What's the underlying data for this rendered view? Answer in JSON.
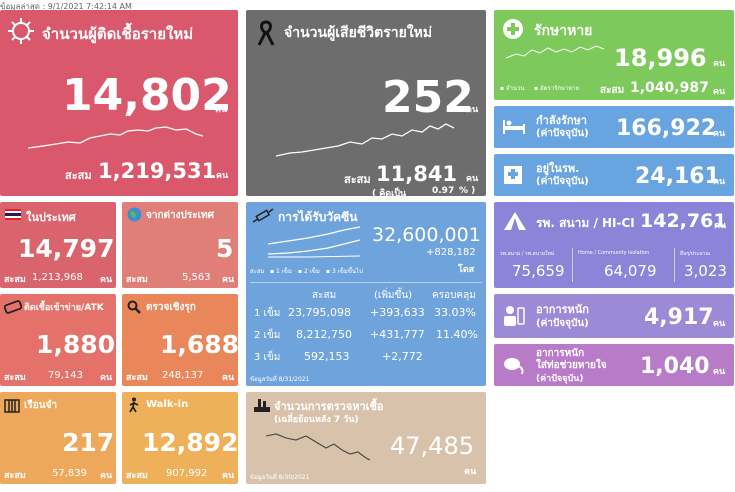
{
  "header": {
    "updated": "ข้อมูลล่าสุด : 9/1/2021 7:42:14 AM"
  },
  "new_cases": {
    "title": "จำนวนผู้ติดเชื้อรายใหม่",
    "value": "14,802",
    "unit": "คน",
    "cum_label": "สะสม",
    "cum_value": "1,219,531",
    "cum_unit": "คน",
    "icon": "virus-icon",
    "color": "#d9586c"
  },
  "deaths": {
    "title": "จำนวนผู้เสียชีวิตรายใหม่",
    "value": "252",
    "unit": "คน",
    "cum_label": "สะสม",
    "cum_value": "11,841",
    "cum_unit": "คน",
    "ratio_label": "( คิดเป็น",
    "ratio_value": "0.97",
    "ratio_suffix": "% )",
    "icon": "black-ribbon-icon",
    "color": "#6d6d6d"
  },
  "recovered": {
    "title": "รักษาหาย",
    "value": "18,996",
    "unit": "คน",
    "legend_count": "จำนวน",
    "legend_rate": "อัตรารักษาหาย",
    "cum_label": "สะสม",
    "cum_value": "1,040,987",
    "cum_unit": "คน",
    "icon": "health-plus-icon",
    "color": "#7ec95b"
  },
  "treating": {
    "title": "กำลังรักษา",
    "sub": "(ค่าปัจจุบัน)",
    "value": "166,922",
    "unit": "คน",
    "icon": "hospital-bed-icon",
    "color": "#68a4df"
  },
  "in_hospital": {
    "title": "อยู่ในรพ.",
    "sub": "(ค่าปัจจุบัน)",
    "value": "24,161",
    "unit": "คน",
    "icon": "hospital-icon",
    "color": "#68a4df"
  },
  "field_hospital": {
    "title": "รพ. สนาม / HI-CI",
    "value": "142,761",
    "unit": "คน",
    "col1_label": "รพ.สนาม / รพ.สนามใหม่",
    "col1_value": "75,659",
    "col2_label": "Home / Community Isolation",
    "col2_value": "64,079",
    "col3_label": "อื่นๆ/ประมาณ",
    "col3_value": "3,023",
    "icon": "tent-icon",
    "color": "#8a85d8"
  },
  "severe": {
    "title": "อาการหนัก",
    "sub": "(ค่าปัจจุบัน)",
    "value": "4,917",
    "unit": "คน",
    "icon": "patient-icon",
    "color": "#9b8ad6"
  },
  "ventilator": {
    "title": "อาการหนัก",
    "title2": "ใส่ท่อช่วยหายใจ",
    "sub": "(ค่าปัจจุบัน)",
    "value": "1,040",
    "unit": "คน",
    "icon": "ventilator-icon",
    "color": "#b77bc8"
  },
  "domestic": {
    "title": "ในประเทศ",
    "value": "14,797",
    "cum_label": "สะสม",
    "cum_value": "1,213,968",
    "cum_unit": "คน",
    "icon": "thai-flag-icon",
    "color": "#d9646e"
  },
  "imported": {
    "title": "จากต่างประเทศ",
    "value": "5",
    "cum_label": "สะสม",
    "cum_value": "5,563",
    "cum_unit": "คน",
    "icon": "globe-icon",
    "color": "#e07f78"
  },
  "atk": {
    "title": "ติดเชื้อเข้าข่าย/ATK",
    "value": "1,880",
    "cum_label": "สะสม",
    "cum_value": "79,143",
    "cum_unit": "คน",
    "icon": "test-kit-icon",
    "color": "#e4726a"
  },
  "proactive": {
    "title": "ตรวจเชิงรุก",
    "value": "1,688",
    "cum_label": "สะสม",
    "cum_value": "248,137",
    "cum_unit": "คน",
    "icon": "magnifier-icon",
    "color": "#e9875b"
  },
  "prison": {
    "title": "เรือนจำ",
    "value": "217",
    "cum_label": "สะสม",
    "cum_value": "57,839",
    "cum_unit": "คน",
    "icon": "prison-icon",
    "color": "#eda85b"
  },
  "walkin": {
    "title": "Walk-in",
    "value": "12,892",
    "cum_label": "สะสม",
    "cum_value": "907,992",
    "cum_unit": "คน",
    "icon": "walking-person-icon",
    "color": "#efb05a"
  },
  "vaccine": {
    "title": "การได้รับวัคซีน",
    "total": "32,600,001",
    "increase": "+828,182",
    "unit": "โดส",
    "legend_label": "สะสม",
    "legend": [
      "1 เข็ม",
      "2 เข็ม",
      "3 เข็มขึ้นไป"
    ],
    "headers": [
      "สะสม",
      "(เพิ่มขึ้น)",
      "ครอบคลุม"
    ],
    "rows": [
      {
        "dose": "1 เข็ม",
        "cum": "23,795,098",
        "inc": "+393,633",
        "cov": "33.03%"
      },
      {
        "dose": "2 เข็ม",
        "cum": "8,212,750",
        "inc": "+431,777",
        "cov": "11.40%"
      },
      {
        "dose": "3 เข็ม",
        "cum": "592,153",
        "inc": "+2,772",
        "cov": ""
      }
    ],
    "date_note": "ข้อมูลวันที่ 8/31/2021",
    "icon": "syringe-icon",
    "color": "#6fa3dc"
  },
  "tests": {
    "title": "จำนวนการตรวจหาเชื้อ",
    "sub": "(เฉลี่ยย้อนหลัง 7 วัน)",
    "value": "47,485",
    "unit": "คน",
    "date_note": "ข้อมูลวันที่ 8/30/2021",
    "icon": "lab-test-icon",
    "color": "#d9c2ab"
  }
}
